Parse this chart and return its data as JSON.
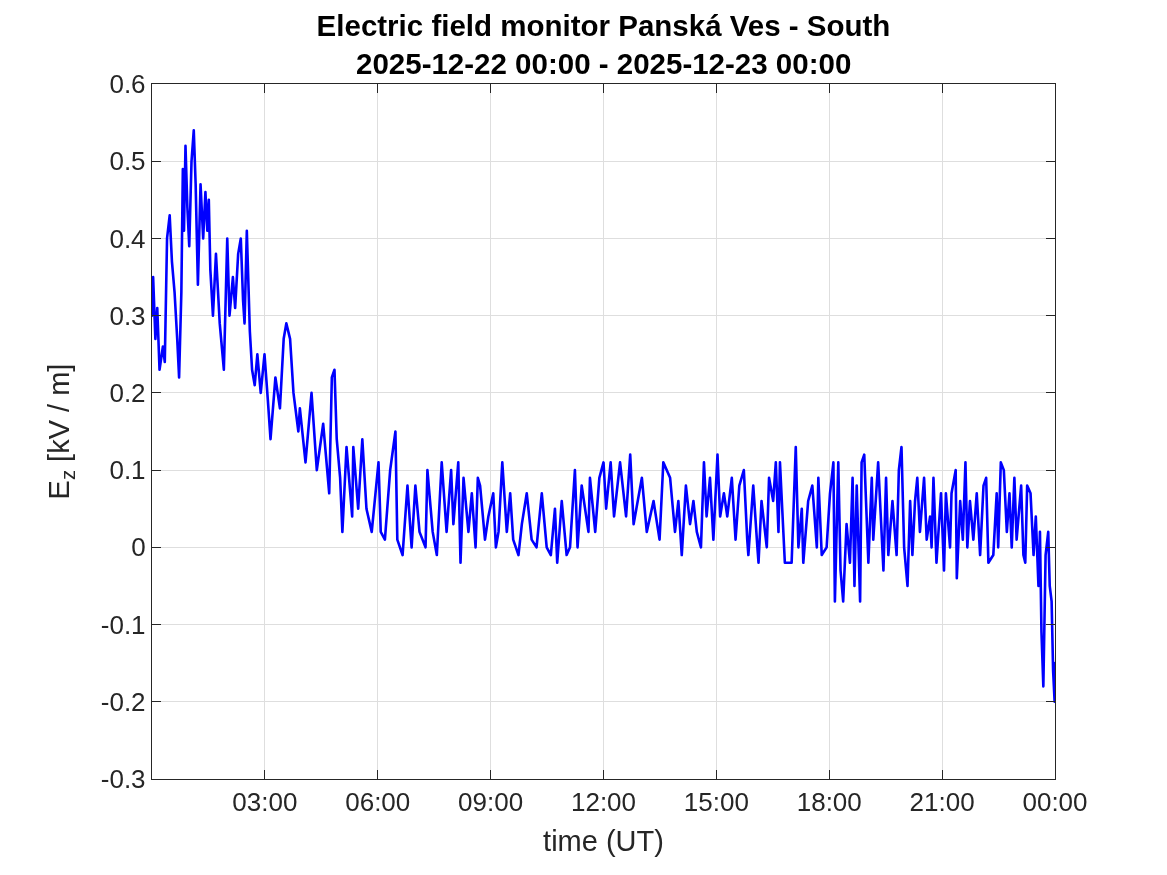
{
  "chart_data": {
    "type": "line",
    "title": "Electric field monitor Panská Ves - South",
    "subtitle": "2025-12-22 00:00 - 2025-12-23 00:00",
    "xlabel": "time (UT)",
    "ylabel": "E$_{z}$ [kV / m]",
    "x": [
      0.0,
      0.03,
      0.09,
      0.14,
      0.2,
      0.29,
      0.34,
      0.4,
      0.47,
      0.53,
      0.6,
      0.67,
      0.72,
      0.78,
      0.82,
      0.85,
      0.89,
      0.94,
      0.99,
      1.05,
      1.11,
      1.16,
      1.22,
      1.29,
      1.36,
      1.42,
      1.47,
      1.51,
      1.55,
      1.62,
      1.7,
      1.8,
      1.91,
      2.0,
      2.06,
      2.15,
      2.21,
      2.29,
      2.36,
      2.42,
      2.46,
      2.52,
      2.6,
      2.66,
      2.73,
      2.8,
      2.89,
      2.99,
      3.08,
      3.15,
      3.28,
      3.4,
      3.5,
      3.57,
      3.67,
      3.76,
      3.89,
      3.93,
      4.08,
      4.24,
      4.38,
      4.55,
      4.71,
      4.78,
      4.85,
      4.91,
      5.0,
      5.06,
      5.17,
      5.32,
      5.35,
      5.48,
      5.59,
      5.7,
      5.84,
      6.02,
      6.08,
      6.19,
      6.33,
      6.47,
      6.52,
      6.66,
      6.79,
      6.9,
      7.0,
      7.11,
      7.27,
      7.32,
      7.46,
      7.57,
      7.7,
      7.83,
      7.95,
      8.01,
      8.14,
      8.2,
      8.28,
      8.41,
      8.5,
      8.6,
      8.66,
      8.72,
      8.85,
      8.94,
      9.07,
      9.14,
      9.21,
      9.31,
      9.43,
      9.52,
      9.6,
      9.74,
      9.83,
      9.96,
      10.09,
      10.22,
      10.36,
      10.49,
      10.6,
      10.71,
      10.77,
      10.89,
      11.02,
      11.11,
      11.24,
      11.31,
      11.42,
      11.6,
      11.64,
      11.78,
      11.89,
      12.0,
      12.07,
      12.19,
      12.28,
      12.44,
      12.6,
      12.71,
      12.8,
      13.02,
      13.15,
      13.33,
      13.49,
      13.59,
      13.77,
      13.9,
      13.99,
      14.08,
      14.19,
      14.3,
      14.39,
      14.48,
      14.59,
      14.67,
      14.74,
      14.83,
      14.92,
      15.03,
      15.1,
      15.2,
      15.29,
      15.41,
      15.51,
      15.61,
      15.73,
      15.82,
      15.85,
      15.98,
      16.09,
      16.12,
      16.2,
      16.34,
      16.4,
      16.51,
      16.58,
      16.65,
      16.69,
      16.82,
      16.91,
      17.0,
      17.11,
      17.18,
      17.27,
      17.31,
      17.44,
      17.55,
      17.67,
      17.71,
      17.8,
      17.93,
      18.02,
      18.11,
      18.15,
      18.24,
      18.3,
      18.37,
      18.46,
      18.55,
      18.62,
      18.67,
      18.73,
      18.82,
      18.86,
      18.93,
      19.04,
      19.13,
      19.17,
      19.3,
      19.44,
      19.51,
      19.57,
      19.68,
      19.79,
      19.85,
      19.92,
      19.99,
      20.08,
      20.15,
      20.21,
      20.28,
      20.34,
      20.41,
      20.52,
      20.59,
      20.68,
      20.72,
      20.77,
      20.85,
      20.97,
      21.05,
      21.1,
      21.21,
      21.25,
      21.36,
      21.39,
      21.48,
      21.55,
      21.62,
      21.67,
      21.74,
      21.83,
      21.92,
      22.01,
      22.1,
      22.17,
      22.23,
      22.36,
      22.45,
      22.49,
      22.56,
      22.64,
      22.72,
      22.79,
      22.85,
      22.92,
      22.98,
      23.1,
      23.16,
      23.21,
      23.26,
      23.35,
      23.43,
      23.49,
      23.56,
      23.6,
      23.64,
      23.69,
      23.75,
      23.82,
      23.86,
      23.91,
      23.95,
      23.99,
      24.0
    ],
    "series": [
      {
        "color": "#0000ff",
        "values": [
          0.3,
          0.35,
          0.27,
          0.31,
          0.23,
          0.26,
          0.24,
          0.4,
          0.43,
          0.37,
          0.33,
          0.27,
          0.22,
          0.33,
          0.49,
          0.41,
          0.52,
          0.44,
          0.39,
          0.5,
          0.54,
          0.47,
          0.34,
          0.47,
          0.4,
          0.46,
          0.41,
          0.45,
          0.36,
          0.3,
          0.38,
          0.29,
          0.23,
          0.4,
          0.3,
          0.35,
          0.31,
          0.38,
          0.4,
          0.32,
          0.29,
          0.41,
          0.28,
          0.23,
          0.21,
          0.25,
          0.2,
          0.25,
          0.19,
          0.14,
          0.22,
          0.18,
          0.27,
          0.29,
          0.27,
          0.2,
          0.15,
          0.18,
          0.11,
          0.2,
          0.1,
          0.16,
          0.07,
          0.22,
          0.23,
          0.14,
          0.09,
          0.02,
          0.13,
          0.04,
          0.13,
          0.05,
          0.14,
          0.05,
          0.02,
          0.11,
          0.02,
          0.01,
          0.1,
          0.15,
          0.01,
          -0.01,
          0.08,
          0.0,
          0.08,
          0.02,
          0.0,
          0.1,
          0.02,
          -0.01,
          0.11,
          0.02,
          0.1,
          0.03,
          0.11,
          -0.02,
          0.09,
          0.02,
          0.07,
          0.0,
          0.09,
          0.08,
          0.01,
          0.04,
          0.07,
          0.0,
          0.02,
          0.11,
          0.02,
          0.07,
          0.01,
          -0.01,
          0.03,
          0.07,
          0.01,
          0.0,
          0.07,
          0.0,
          -0.01,
          0.05,
          -0.02,
          0.06,
          -0.01,
          0.0,
          0.1,
          0.0,
          0.08,
          0.02,
          0.09,
          0.02,
          0.09,
          0.11,
          0.05,
          0.11,
          0.04,
          0.11,
          0.04,
          0.12,
          0.03,
          0.09,
          0.02,
          0.06,
          0.01,
          0.11,
          0.09,
          0.02,
          0.06,
          -0.01,
          0.08,
          0.03,
          0.06,
          0.02,
          0.0,
          0.11,
          0.04,
          0.09,
          0.01,
          0.12,
          0.04,
          0.07,
          0.04,
          0.09,
          0.01,
          0.08,
          0.1,
          0.01,
          -0.01,
          0.08,
          0.0,
          -0.02,
          0.06,
          0.0,
          0.09,
          0.06,
          0.11,
          0.02,
          0.11,
          -0.02,
          -0.02,
          -0.02,
          0.13,
          0.0,
          0.05,
          -0.02,
          0.06,
          0.08,
          0.0,
          0.09,
          -0.01,
          0.0,
          0.07,
          0.11,
          -0.07,
          0.11,
          -0.03,
          -0.07,
          0.03,
          -0.02,
          0.09,
          -0.05,
          0.08,
          -0.07,
          0.11,
          0.12,
          -0.02,
          0.09,
          0.01,
          0.11,
          -0.03,
          0.09,
          -0.01,
          0.06,
          -0.01,
          0.1,
          0.13,
          0.0,
          -0.05,
          0.06,
          -0.01,
          0.06,
          0.09,
          0.02,
          0.09,
          0.01,
          0.04,
          0.0,
          0.09,
          -0.02,
          0.07,
          -0.03,
          0.07,
          0.0,
          0.07,
          0.1,
          -0.04,
          0.06,
          0.01,
          0.11,
          0.0,
          0.06,
          0.01,
          0.07,
          -0.01,
          0.08,
          0.09,
          -0.02,
          -0.01,
          0.07,
          0.0,
          0.11,
          0.1,
          0.02,
          0.07,
          0.0,
          0.09,
          0.01,
          0.08,
          -0.01,
          -0.02,
          0.08,
          0.07,
          -0.01,
          0.04,
          -0.05,
          0.02,
          -0.11,
          -0.18,
          -0.01,
          0.02,
          -0.05,
          -0.07,
          -0.16,
          -0.2,
          -0.15
        ]
      }
    ],
    "xlim": [
      0,
      24
    ],
    "xticks": [
      {
        "value": 3,
        "label": "03:00"
      },
      {
        "value": 6,
        "label": "06:00"
      },
      {
        "value": 9,
        "label": "09:00"
      },
      {
        "value": 12,
        "label": "12:00"
      },
      {
        "value": 15,
        "label": "15:00"
      },
      {
        "value": 18,
        "label": "18:00"
      },
      {
        "value": 21,
        "label": "21:00"
      },
      {
        "value": 24,
        "label": "00:00"
      }
    ],
    "ylim": [
      -0.3,
      0.6
    ],
    "yticks": [
      -0.3,
      -0.2,
      -0.1,
      0,
      0.1,
      0.2,
      0.3,
      0.4,
      0.5,
      0.6
    ],
    "grid": true
  }
}
